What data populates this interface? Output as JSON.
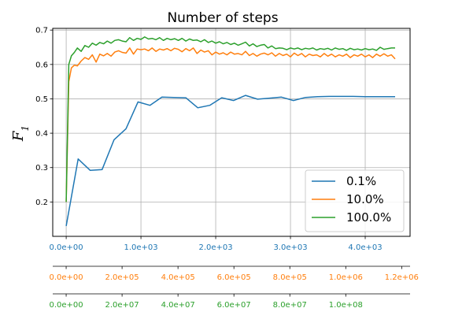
{
  "chart_data": {
    "type": "line",
    "title": "Number of steps",
    "ylabel": "F",
    "ylabel_subscript": "1",
    "ylim": [
      0.1,
      0.705
    ],
    "yticks": [
      0.2,
      0.3,
      0.4,
      0.5,
      0.6,
      0.7
    ],
    "grid": true,
    "legend_position": "bottom-right",
    "x_axes": [
      {
        "color": "#1f77b4",
        "range": [
          -180,
          4600
        ],
        "ticks": [
          0,
          1000,
          2000,
          3000,
          4000
        ],
        "tick_labels": [
          "0.0e+00",
          "1.0e+03",
          "2.0e+03",
          "3.0e+03",
          "4.0e+03"
        ]
      },
      {
        "color": "#ff7f0e",
        "range": [
          -48000,
          1230000
        ],
        "ticks": [
          0,
          200000,
          400000,
          600000,
          800000,
          1000000,
          1200000
        ],
        "tick_labels": [
          "0.0e+00",
          "2.0e+05",
          "4.0e+05",
          "6.0e+05",
          "8.0e+05",
          "1.0e+06",
          "1.2e+06"
        ]
      },
      {
        "color": "#2ca02c",
        "range": [
          -4800000,
          123000000
        ],
        "ticks": [
          0,
          20000000,
          40000000,
          60000000,
          80000000,
          100000000
        ],
        "tick_labels": [
          "0.0e+00",
          "2.0e+07",
          "4.0e+07",
          "6.0e+07",
          "8.0e+07",
          "1.0e+08"
        ]
      }
    ],
    "series": [
      {
        "name": "0.1%",
        "color": "#1f77b4",
        "x": [
          0,
          160,
          320,
          480,
          640,
          800,
          960,
          1120,
          1280,
          1440,
          1600,
          1760,
          1920,
          2080,
          2240,
          2400,
          2560,
          2720,
          2880,
          3040,
          3200,
          3360,
          3520,
          3680,
          3840,
          4000,
          4160,
          4320,
          4400
        ],
        "y": [
          0.13,
          0.325,
          0.292,
          0.294,
          0.381,
          0.413,
          0.491,
          0.481,
          0.505,
          0.504,
          0.503,
          0.474,
          0.481,
          0.503,
          0.495,
          0.51,
          0.499,
          0.502,
          0.505,
          0.495,
          0.504,
          0.506,
          0.507,
          0.507,
          0.507,
          0.506,
          0.506,
          0.506,
          0.506
        ]
      },
      {
        "name": "10.0%",
        "color": "#ff7f0e",
        "x": [
          0,
          35,
          70,
          110,
          150,
          200,
          250,
          300,
          350,
          400,
          450,
          500,
          550,
          600,
          650,
          700,
          750,
          800,
          850,
          900,
          950,
          1000,
          1050,
          1100,
          1150,
          1200,
          1250,
          1300,
          1350,
          1400,
          1450,
          1500,
          1550,
          1600,
          1650,
          1700,
          1750,
          1800,
          1850,
          1900,
          1950,
          2000,
          2050,
          2100,
          2150,
          2200,
          2250,
          2300,
          2350,
          2400,
          2450,
          2500,
          2550,
          2600,
          2650,
          2700,
          2750,
          2800,
          2850,
          2900,
          2950,
          3000,
          3050,
          3100,
          3150,
          3200,
          3250,
          3300,
          3350,
          3400,
          3450,
          3500,
          3550,
          3600,
          3650,
          3700,
          3750,
          3800,
          3850,
          3900,
          3950,
          4000,
          4050,
          4100,
          4150,
          4200,
          4250,
          4300,
          4350,
          4400
        ],
        "y": [
          0.2,
          0.55,
          0.59,
          0.598,
          0.596,
          0.61,
          0.62,
          0.615,
          0.628,
          0.607,
          0.63,
          0.625,
          0.632,
          0.624,
          0.636,
          0.64,
          0.635,
          0.633,
          0.648,
          0.63,
          0.645,
          0.643,
          0.645,
          0.64,
          0.648,
          0.638,
          0.645,
          0.642,
          0.646,
          0.64,
          0.647,
          0.644,
          0.637,
          0.646,
          0.64,
          0.648,
          0.632,
          0.642,
          0.636,
          0.64,
          0.628,
          0.636,
          0.63,
          0.634,
          0.628,
          0.636,
          0.63,
          0.632,
          0.628,
          0.638,
          0.626,
          0.632,
          0.624,
          0.63,
          0.633,
          0.628,
          0.634,
          0.624,
          0.632,
          0.626,
          0.63,
          0.622,
          0.633,
          0.626,
          0.632,
          0.622,
          0.63,
          0.626,
          0.628,
          0.622,
          0.632,
          0.624,
          0.63,
          0.622,
          0.628,
          0.624,
          0.63,
          0.62,
          0.628,
          0.624,
          0.63,
          0.622,
          0.628,
          0.62,
          0.63,
          0.624,
          0.631,
          0.624,
          0.628,
          0.616
        ]
      },
      {
        "name": "100.0%",
        "color": "#2ca02c",
        "x": [
          0,
          35,
          70,
          110,
          150,
          200,
          250,
          300,
          350,
          400,
          450,
          500,
          550,
          600,
          650,
          700,
          750,
          800,
          850,
          900,
          950,
          1000,
          1050,
          1100,
          1150,
          1200,
          1250,
          1300,
          1350,
          1400,
          1450,
          1500,
          1550,
          1600,
          1650,
          1700,
          1750,
          1800,
          1850,
          1900,
          1950,
          2000,
          2050,
          2100,
          2150,
          2200,
          2250,
          2300,
          2350,
          2400,
          2450,
          2500,
          2550,
          2600,
          2650,
          2700,
          2750,
          2800,
          2850,
          2900,
          2950,
          3000,
          3050,
          3100,
          3150,
          3200,
          3250,
          3300,
          3350,
          3400,
          3450,
          3500,
          3550,
          3600,
          3650,
          3700,
          3750,
          3800,
          3850,
          3900,
          3950,
          4000,
          4050,
          4100,
          4150,
          4200,
          4250,
          4300,
          4350,
          4400
        ],
        "y": [
          0.2,
          0.6,
          0.625,
          0.635,
          0.648,
          0.638,
          0.655,
          0.65,
          0.662,
          0.656,
          0.664,
          0.66,
          0.668,
          0.662,
          0.67,
          0.672,
          0.668,
          0.666,
          0.678,
          0.67,
          0.676,
          0.673,
          0.68,
          0.674,
          0.676,
          0.672,
          0.678,
          0.67,
          0.676,
          0.672,
          0.675,
          0.67,
          0.676,
          0.668,
          0.674,
          0.67,
          0.671,
          0.666,
          0.672,
          0.664,
          0.668,
          0.662,
          0.666,
          0.66,
          0.664,
          0.658,
          0.662,
          0.656,
          0.66,
          0.665,
          0.654,
          0.66,
          0.652,
          0.656,
          0.658,
          0.648,
          0.654,
          0.646,
          0.648,
          0.647,
          0.643,
          0.648,
          0.645,
          0.648,
          0.643,
          0.647,
          0.645,
          0.648,
          0.642,
          0.646,
          0.644,
          0.647,
          0.642,
          0.648,
          0.644,
          0.646,
          0.641,
          0.647,
          0.643,
          0.645,
          0.642,
          0.646,
          0.643,
          0.645,
          0.641,
          0.65,
          0.644,
          0.646,
          0.648,
          0.648
        ]
      }
    ]
  }
}
